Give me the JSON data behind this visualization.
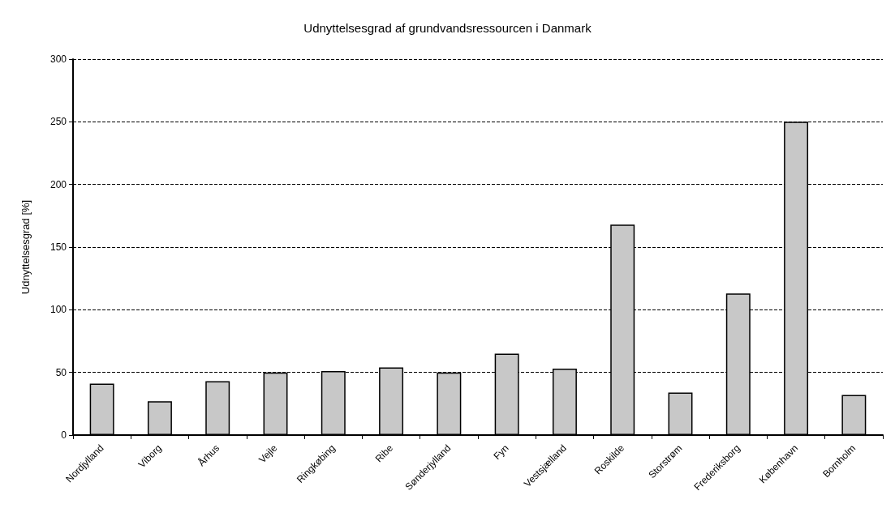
{
  "chart_data": {
    "type": "bar",
    "title": "Udnyttelsesgrad af grundvandsressourcen i Danmark",
    "ylabel": "Udnyttelsesgrad [%]",
    "categories": [
      "Nordjylland",
      "Viborg",
      "Århus",
      "Vejle",
      "Ringkøbing",
      "Ribe",
      "Sønderjylland",
      "Fyn",
      "Vestsjælland",
      "Roskilde",
      "Storstrøm",
      "Frederiksborg",
      "København",
      "Bornholm"
    ],
    "values": [
      41,
      27,
      43,
      50,
      51,
      54,
      50,
      65,
      53,
      168,
      34,
      113,
      250,
      32
    ],
    "color": "#c8c8c8",
    "ylim": [
      0,
      300
    ],
    "yticks": [
      0,
      50,
      100,
      150,
      200,
      250,
      300
    ],
    "grid": "y"
  }
}
